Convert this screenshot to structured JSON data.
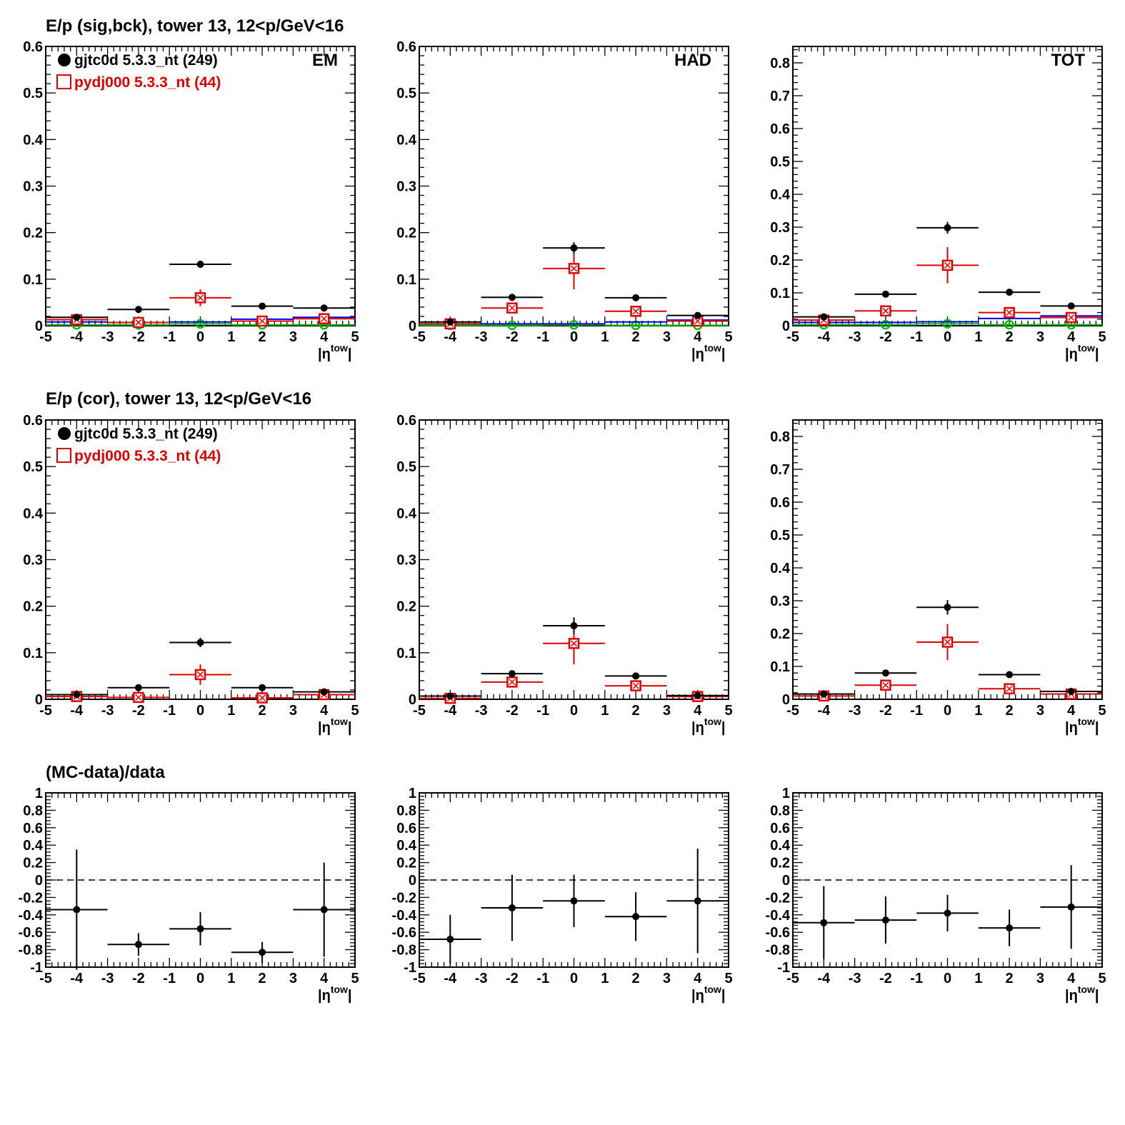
{
  "chart_data": {
    "type": "scatter",
    "x_label": "|η^tow|",
    "x_ticks": [
      "-5",
      "-4",
      "-3",
      "-2",
      "-1",
      "0",
      "1",
      "2",
      "3",
      "4",
      "5"
    ],
    "xlim": [
      -5,
      5
    ],
    "x_bins": [
      [
        -5,
        -3
      ],
      [
        -3,
        -1
      ],
      [
        -1,
        1
      ],
      [
        1,
        3
      ],
      [
        3,
        5
      ]
    ],
    "x_centers": [
      -4,
      -2,
      0,
      2,
      4
    ],
    "colors": {
      "data": "#000000",
      "mc": "#e00000",
      "blue": "#0000e0",
      "green": "#00c000"
    },
    "rows": [
      {
        "title": "E/p (sig,bck), tower 13, 12<p/GeV<16",
        "legend": [
          {
            "marker": "filled-circle",
            "label": "gjtc0d 5.3.3_nt (249)",
            "color": "#000000"
          },
          {
            "marker": "open-square",
            "label": "pydj000 5.3.3_nt (44)",
            "color": "#e00000"
          }
        ],
        "panels": [
          {
            "label": "EM",
            "ylim": [
              0,
              0.6
            ],
            "yticks": [
              "0",
              "0.1",
              "0.2",
              "0.3",
              "0.4",
              "0.5",
              "0.6"
            ],
            "series": [
              {
                "name": "gjtc0d 5.3.3_nt (249)",
                "color": "#000000",
                "marker": "filled-circle",
                "y": [
                  0.018,
                  0.035,
                  0.132,
                  0.042,
                  0.038
                ],
                "err": [
                  0.003,
                  0.003,
                  0.008,
                  0.003,
                  0.003
                ]
              },
              {
                "name": "pydj000 5.3.3_nt (44)",
                "color": "#e00000",
                "marker": "open-square",
                "y": [
                  0.013,
                  0.007,
                  0.06,
                  0.01,
                  0.015
                ],
                "err": [
                  0.004,
                  0.004,
                  0.018,
                  0.004,
                  0.005
                ]
              },
              {
                "color": "#0000e0",
                "marker": "none",
                "y": [
                  0.008,
                  0.007,
                  0.008,
                  0.014,
                  0.018
                ],
                "err": [
                  0.002,
                  0.002,
                  0.002,
                  0.002,
                  0.002
                ]
              },
              {
                "color": "#00c000",
                "marker": "open-circle",
                "y": [
                  0.002,
                  0.002,
                  0.004,
                  0.002,
                  0.002
                ],
                "err": [
                  0.001,
                  0.001,
                  0.002,
                  0.001,
                  0.001
                ]
              }
            ]
          },
          {
            "label": "HAD",
            "ylim": [
              0,
              0.6
            ],
            "yticks": [
              "0",
              "0.1",
              "0.2",
              "0.3",
              "0.4",
              "0.5",
              "0.6"
            ],
            "series": [
              {
                "name": "gjtc0d 5.3.3_nt (249)",
                "color": "#000000",
                "marker": "filled-circle",
                "y": [
                  0.008,
                  0.061,
                  0.167,
                  0.06,
                  0.022
                ],
                "err": [
                  0.002,
                  0.005,
                  0.012,
                  0.004,
                  0.003
                ]
              },
              {
                "name": "pydj000 5.3.3_nt (44)",
                "color": "#e00000",
                "marker": "open-square",
                "y": [
                  0.004,
                  0.038,
                  0.123,
                  0.031,
                  0.01
                ],
                "err": [
                  0.003,
                  0.01,
                  0.045,
                  0.008,
                  0.004
                ]
              },
              {
                "color": "#0000e0",
                "marker": "none",
                "y": [
                  0.004,
                  0.004,
                  0.004,
                  0.008,
                  0.012
                ],
                "err": [
                  0.001,
                  0.001,
                  0.001,
                  0.001,
                  0.001
                ]
              },
              {
                "color": "#00c000",
                "marker": "open-circle",
                "y": [
                  0.001,
                  0.001,
                  0.002,
                  0.001,
                  0.001
                ],
                "err": [
                  0.001,
                  0.001,
                  0.001,
                  0.001,
                  0.001
                ]
              }
            ]
          },
          {
            "label": "TOT",
            "ylim": [
              0,
              0.85
            ],
            "yticks": [
              "0",
              "0.1",
              "0.2",
              "0.3",
              "0.4",
              "0.5",
              "0.6",
              "0.7",
              "0.8"
            ],
            "series": [
              {
                "name": "gjtc0d 5.3.3_nt (249)",
                "color": "#000000",
                "marker": "filled-circle",
                "y": [
                  0.027,
                  0.096,
                  0.298,
                  0.102,
                  0.06
                ],
                "err": [
                  0.003,
                  0.005,
                  0.018,
                  0.005,
                  0.004
                ]
              },
              {
                "name": "pydj000 5.3.3_nt (44)",
                "color": "#e00000",
                "marker": "open-square",
                "y": [
                  0.017,
                  0.045,
                  0.184,
                  0.04,
                  0.025
                ],
                "err": [
                  0.005,
                  0.012,
                  0.055,
                  0.01,
                  0.006
                ]
              },
              {
                "color": "#0000e0",
                "marker": "none",
                "y": [
                  0.01,
                  0.01,
                  0.012,
                  0.022,
                  0.03
                ],
                "err": [
                  0.002,
                  0.002,
                  0.002,
                  0.002,
                  0.002
                ]
              },
              {
                "color": "#00c000",
                "marker": "open-circle",
                "y": [
                  0.003,
                  0.003,
                  0.006,
                  0.003,
                  0.003
                ],
                "err": [
                  0.001,
                  0.001,
                  0.002,
                  0.001,
                  0.001
                ]
              }
            ]
          }
        ]
      },
      {
        "title": "E/p (cor), tower 13, 12<p/GeV<16",
        "legend": [
          {
            "marker": "filled-circle",
            "label": "gjtc0d 5.3.3_nt (249)",
            "color": "#000000"
          },
          {
            "marker": "open-square",
            "label": "pydj000 5.3.3_nt (44)",
            "color": "#e00000"
          }
        ],
        "panels": [
          {
            "label": "",
            "ylim": [
              0,
              0.6
            ],
            "yticks": [
              "0",
              "0.1",
              "0.2",
              "0.3",
              "0.4",
              "0.5",
              "0.6"
            ],
            "series": [
              {
                "name": "gjtc0d 5.3.3_nt (249)",
                "color": "#000000",
                "marker": "filled-circle",
                "y": [
                  0.01,
                  0.025,
                  0.122,
                  0.025,
                  0.016
                ],
                "err": [
                  0.003,
                  0.003,
                  0.01,
                  0.003,
                  0.003
                ]
              },
              {
                "name": "pydj000 5.3.3_nt (44)",
                "color": "#e00000",
                "marker": "open-square",
                "y": [
                  0.006,
                  0.004,
                  0.053,
                  0.003,
                  0.01
                ],
                "err": [
                  0.004,
                  0.004,
                  0.022,
                  0.004,
                  0.005
                ]
              }
            ]
          },
          {
            "label": "",
            "ylim": [
              0,
              0.6
            ],
            "yticks": [
              "0",
              "0.1",
              "0.2",
              "0.3",
              "0.4",
              "0.5",
              "0.6"
            ],
            "series": [
              {
                "name": "gjtc0d 5.3.3_nt (249)",
                "color": "#000000",
                "marker": "filled-circle",
                "y": [
                  0.007,
                  0.055,
                  0.158,
                  0.05,
                  0.008
                ],
                "err": [
                  0.002,
                  0.005,
                  0.018,
                  0.004,
                  0.002
                ]
              },
              {
                "name": "pydj000 5.3.3_nt (44)",
                "color": "#e00000",
                "marker": "open-square",
                "y": [
                  0.002,
                  0.037,
                  0.12,
                  0.029,
                  0.006
                ],
                "err": [
                  0.003,
                  0.012,
                  0.045,
                  0.008,
                  0.003
                ]
              }
            ]
          },
          {
            "label": "",
            "ylim": [
              0,
              0.85
            ],
            "yticks": [
              "0",
              "0.1",
              "0.2",
              "0.3",
              "0.4",
              "0.5",
              "0.6",
              "0.7",
              "0.8"
            ],
            "series": [
              {
                "name": "gjtc0d 5.3.3_nt (249)",
                "color": "#000000",
                "marker": "filled-circle",
                "y": [
                  0.016,
                  0.08,
                  0.28,
                  0.075,
                  0.024
                ],
                "err": [
                  0.003,
                  0.005,
                  0.022,
                  0.005,
                  0.003
                ]
              },
              {
                "name": "pydj000 5.3.3_nt (44)",
                "color": "#e00000",
                "marker": "open-square",
                "y": [
                  0.01,
                  0.043,
                  0.174,
                  0.032,
                  0.016
                ],
                "err": [
                  0.004,
                  0.012,
                  0.055,
                  0.008,
                  0.005
                ]
              }
            ]
          }
        ]
      },
      {
        "title": "(MC-data)/data",
        "legend": [],
        "reference_line": 0,
        "panels": [
          {
            "label": "",
            "ylim": [
              -1,
              1
            ],
            "yticks": [
              "-1",
              "-0.8",
              "-0.6",
              "-0.4",
              "-0.2",
              "0",
              "0.2",
              "0.4",
              "0.6",
              "0.8",
              "1"
            ],
            "series": [
              {
                "color": "#000000",
                "marker": "filled-circle",
                "y": [
                  -0.34,
                  -0.74,
                  -0.56,
                  -0.83,
                  -0.34
                ],
                "err": [
                  0.69,
                  0.13,
                  0.19,
                  0.12,
                  0.54
                ]
              }
            ]
          },
          {
            "label": "",
            "ylim": [
              -1,
              1
            ],
            "yticks": [
              "-1",
              "-0.8",
              "-0.6",
              "-0.4",
              "-0.2",
              "0",
              "0.2",
              "0.4",
              "0.6",
              "0.8",
              "1"
            ],
            "series": [
              {
                "color": "#000000",
                "marker": "filled-circle",
                "y": [
                  -0.68,
                  -0.32,
                  -0.24,
                  -0.42,
                  -0.24
                ],
                "err": [
                  0.28,
                  0.38,
                  0.3,
                  0.28,
                  0.6
                ]
              }
            ]
          },
          {
            "label": "",
            "ylim": [
              -1,
              1
            ],
            "yticks": [
              "-1",
              "-0.8",
              "-0.6",
              "-0.4",
              "-0.2",
              "0",
              "0.2",
              "0.4",
              "0.6",
              "0.8",
              "1"
            ],
            "series": [
              {
                "color": "#000000",
                "marker": "filled-circle",
                "y": [
                  -0.49,
                  -0.46,
                  -0.38,
                  -0.55,
                  -0.31
                ],
                "err": [
                  0.42,
                  0.27,
                  0.21,
                  0.21,
                  0.48
                ]
              }
            ]
          }
        ]
      }
    ]
  }
}
